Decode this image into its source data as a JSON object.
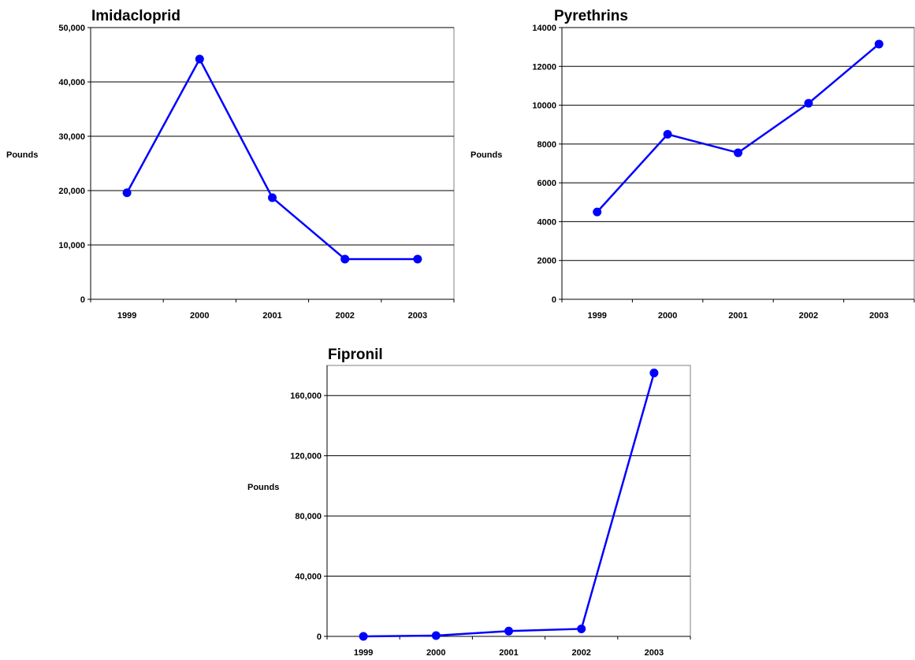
{
  "chart_data": [
    {
      "type": "line",
      "title": "Imidacloprid",
      "ylabel": "Pounds",
      "xlabel": "",
      "categories": [
        "1999",
        "2000",
        "2001",
        "2002",
        "2003"
      ],
      "values": [
        19600,
        44200,
        18700,
        7400,
        7400
      ],
      "ylim": [
        0,
        50000
      ],
      "yticks": [
        0,
        10000,
        20000,
        30000,
        40000,
        50000
      ],
      "ytick_labels": [
        "0",
        "10,000",
        "20,000",
        "30,000",
        "40,000",
        "50,000"
      ],
      "grid": true,
      "color": "#0000ff"
    },
    {
      "type": "line",
      "title": "Pyrethrins",
      "ylabel": "Pounds",
      "xlabel": "",
      "categories": [
        "1999",
        "2000",
        "2001",
        "2002",
        "2003"
      ],
      "values": [
        4500,
        8500,
        7550,
        10100,
        13150
      ],
      "ylim": [
        0,
        14000
      ],
      "yticks": [
        0,
        2000,
        4000,
        6000,
        8000,
        10000,
        12000,
        14000
      ],
      "ytick_labels": [
        "0",
        "2000",
        "4000",
        "6000",
        "8000",
        "10000",
        "12000",
        "14000"
      ],
      "grid": true,
      "color": "#0000ff"
    },
    {
      "type": "line",
      "title": "Fipronil",
      "ylabel": "Pounds",
      "xlabel": "",
      "categories": [
        "1999",
        "2000",
        "2001",
        "2002",
        "2003"
      ],
      "values": [
        0,
        500,
        3500,
        5000,
        175000
      ],
      "ylim": [
        0,
        180000
      ],
      "yticks": [
        0,
        40000,
        80000,
        120000,
        160000
      ],
      "ytick_labels": [
        "0",
        "40,000",
        "80,000",
        "120,000",
        "160,000"
      ],
      "grid": true,
      "color": "#0000ff"
    }
  ]
}
